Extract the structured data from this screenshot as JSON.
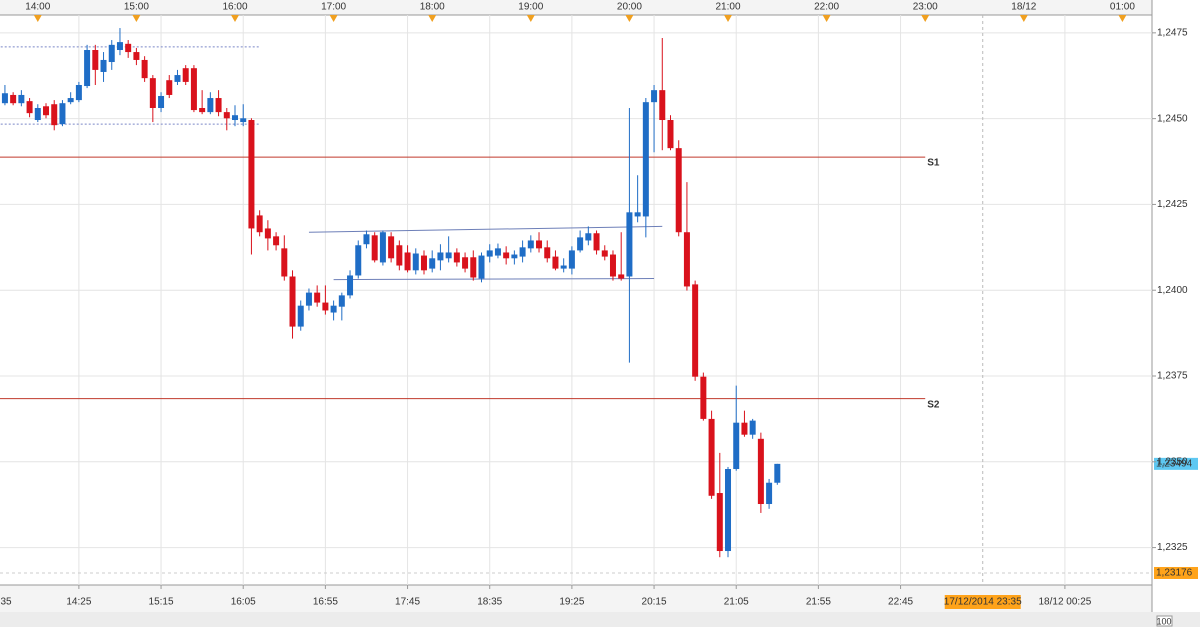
{
  "chart_data": {
    "type": "candlestick",
    "x": [
      "13:40",
      "13:45",
      "13:50",
      "13:55",
      "14:00",
      "14:05",
      "14:10",
      "14:15",
      "14:20",
      "14:25",
      "14:30",
      "14:35",
      "14:40",
      "14:45",
      "14:50",
      "14:55",
      "15:00",
      "15:05",
      "15:10",
      "15:15",
      "15:20",
      "15:25",
      "15:30",
      "15:35",
      "15:40",
      "15:45",
      "15:50",
      "15:55",
      "16:00",
      "16:05",
      "16:10",
      "16:15",
      "16:20",
      "16:25",
      "16:30",
      "16:35",
      "16:40",
      "16:45",
      "16:50",
      "16:55",
      "17:00",
      "17:05",
      "17:10",
      "17:15",
      "17:20",
      "17:25",
      "17:30",
      "17:35",
      "17:40",
      "17:45",
      "17:50",
      "17:55",
      "18:00",
      "18:05",
      "18:10",
      "18:15",
      "18:20",
      "18:25",
      "18:30",
      "18:35",
      "18:40",
      "18:45",
      "18:50",
      "18:55",
      "19:00",
      "19:05",
      "19:10",
      "19:15",
      "19:20",
      "19:25",
      "19:30",
      "19:35",
      "19:40",
      "19:45",
      "19:50",
      "19:55",
      "20:00",
      "20:05",
      "20:10",
      "20:15",
      "20:20",
      "20:25",
      "20:30",
      "20:35",
      "20:40",
      "20:45",
      "20:50",
      "20:55",
      "21:00",
      "21:05",
      "21:10",
      "21:15",
      "21:20",
      "21:25",
      "21:30"
    ],
    "open": [
      1.24545,
      1.24569,
      1.24545,
      1.24551,
      1.24496,
      1.24536,
      1.24542,
      1.24484,
      1.24548,
      1.24554,
      1.24595,
      1.247,
      1.24636,
      1.24665,
      1.247,
      1.24718,
      1.24694,
      1.24671,
      1.24618,
      1.24531,
      1.24612,
      1.24607,
      1.24647,
      1.24647,
      1.24531,
      1.24519,
      1.2456,
      1.24519,
      1.24496,
      1.2449,
      1.24496,
      1.24218,
      1.2418,
      1.24157,
      1.24122,
      1.2404,
      1.23894,
      1.23955,
      1.23993,
      1.23964,
      1.23935,
      1.23952,
      1.23985,
      1.24043,
      1.24134,
      1.2416,
      1.24081,
      1.24157,
      1.24131,
      1.2411,
      1.24058,
      1.24101,
      1.24063,
      1.24087,
      1.24093,
      1.2411,
      1.24096,
      1.24096,
      1.24034,
      1.24098,
      1.24101,
      1.2411,
      1.24093,
      1.24098,
      1.24122,
      1.24145,
      1.24125,
      1.24098,
      1.24063,
      1.24063,
      1.24116,
      1.24145,
      1.24166,
      1.24116,
      1.24104,
      1.24046,
      1.2404,
      1.24215,
      1.24215,
      1.24548,
      1.24583,
      1.24496,
      1.24414,
      1.24169,
      1.24017,
      1.23748,
      1.23625,
      1.23409,
      1.2324,
      1.23479,
      1.23614,
      1.23579,
      1.23567,
      1.23377,
      1.23439
    ],
    "high": [
      1.24598,
      1.24577,
      1.24583,
      1.2456,
      1.24542,
      1.24545,
      1.24554,
      1.24554,
      1.24577,
      1.24607,
      1.24715,
      1.24715,
      1.24694,
      1.24729,
      1.24764,
      1.24729,
      1.24706,
      1.24682,
      1.24627,
      1.24577,
      1.24627,
      1.24642,
      1.24656,
      1.24656,
      1.24583,
      1.24577,
      1.24583,
      1.24531,
      1.24539,
      1.24542,
      1.24501,
      1.24233,
      1.24204,
      1.24169,
      1.2416,
      1.24058,
      1.2397,
      1.24005,
      1.24014,
      1.24014,
      1.2397,
      1.23993,
      1.24058,
      1.24145,
      1.24174,
      1.24169,
      1.24174,
      1.24169,
      1.24145,
      1.24131,
      1.24122,
      1.24116,
      1.24116,
      1.24134,
      1.24157,
      1.24122,
      1.2411,
      1.24116,
      1.2411,
      1.24134,
      1.24136,
      1.24128,
      1.24116,
      1.24145,
      1.2416,
      1.24169,
      1.24145,
      1.24116,
      1.24093,
      1.24128,
      1.24174,
      1.24186,
      1.24174,
      1.24131,
      1.24116,
      1.24169,
      1.24531,
      1.24335,
      1.2456,
      1.24598,
      1.24735,
      1.2451,
      1.24437,
      1.24315,
      1.24028,
      1.2376,
      1.23649,
      1.23526,
      1.23485,
      1.23722,
      1.23649,
      1.23625,
      1.23585,
      1.2345,
      1.23494
    ],
    "low": [
      1.24539,
      1.24539,
      1.24536,
      1.24504,
      1.2449,
      1.24501,
      1.24466,
      1.24478,
      1.24542,
      1.24548,
      1.24589,
      1.24598,
      1.24607,
      1.24642,
      1.24685,
      1.24677,
      1.24656,
      1.24607,
      1.2449,
      1.24519,
      1.2456,
      1.24598,
      1.24598,
      1.24519,
      1.24513,
      1.24513,
      1.24507,
      1.24466,
      1.24478,
      1.24478,
      1.24104,
      1.24157,
      1.24116,
      1.24116,
      1.24028,
      1.23859,
      1.23882,
      1.23941,
      1.23952,
      1.23929,
      1.23912,
      1.23912,
      1.23976,
      1.24034,
      1.24122,
      1.24081,
      1.24072,
      1.24081,
      1.24058,
      1.24052,
      1.24046,
      1.24046,
      1.24052,
      1.24058,
      1.24081,
      1.24069,
      1.24052,
      1.24028,
      1.24023,
      1.24081,
      1.24093,
      1.24075,
      1.24075,
      1.24081,
      1.2411,
      1.2411,
      1.24081,
      1.24058,
      1.24052,
      1.24046,
      1.2411,
      1.24131,
      1.24104,
      1.24087,
      1.24028,
      1.24028,
      1.23789,
      1.24198,
      1.24154,
      1.24402,
      1.24408,
      1.24408,
      1.24157,
      1.23999,
      1.23736,
      1.2362,
      1.23392,
      1.23222,
      1.23222,
      1.23474,
      1.23573,
      1.23567,
      1.23351,
      1.23363,
      1.23433
    ],
    "close": [
      1.24574,
      1.24545,
      1.24569,
      1.24516,
      1.24531,
      1.2451,
      1.24481,
      1.24545,
      1.2456,
      1.24598,
      1.247,
      1.24642,
      1.24671,
      1.24715,
      1.24723,
      1.24694,
      1.24671,
      1.24618,
      1.24531,
      1.24566,
      1.24569,
      1.24627,
      1.24607,
      1.24525,
      1.24519,
      1.2456,
      1.24519,
      1.24501,
      1.2451,
      1.24501,
      1.2418,
      1.24169,
      1.24151,
      1.24131,
      1.2404,
      1.23894,
      1.23955,
      1.23993,
      1.23964,
      1.23941,
      1.23955,
      1.23985,
      1.24043,
      1.24131,
      1.24163,
      1.24087,
      1.24169,
      1.24093,
      1.24072,
      1.24058,
      1.24107,
      1.24058,
      1.24093,
      1.2411,
      1.2411,
      1.24081,
      1.24063,
      1.24037,
      1.24101,
      1.24116,
      1.24122,
      1.24093,
      1.24104,
      1.24125,
      1.24145,
      1.24122,
      1.24093,
      1.24063,
      1.24072,
      1.24116,
      1.24154,
      1.24166,
      1.24116,
      1.24098,
      1.2404,
      1.24034,
      1.24227,
      1.24227,
      1.24548,
      1.24583,
      1.24496,
      1.24414,
      1.24169,
      1.24011,
      1.23748,
      1.23625,
      1.23401,
      1.2324,
      1.23479,
      1.23614,
      1.23579,
      1.2362,
      1.23377,
      1.23439,
      1.23494
    ],
    "up_color": "#1f6dc6",
    "down_color": "#d9121c",
    "xlim": [
      "13:37",
      "25:18"
    ],
    "ylim": [
      1.23141,
      1.24802
    ],
    "yticks": [
      {
        "value": 1.2325,
        "label": "1,2325"
      },
      {
        "value": 1.235,
        "label": "1,2350"
      },
      {
        "value": 1.2375,
        "label": "1,2375"
      },
      {
        "value": 1.24,
        "label": "1,2400"
      },
      {
        "value": 1.2425,
        "label": "1,2425"
      },
      {
        "value": 1.245,
        "label": "1,2450"
      },
      {
        "value": 1.2475,
        "label": "1,2475"
      }
    ],
    "top_ticks": [
      "14:00",
      "15:00",
      "16:00",
      "17:00",
      "18:00",
      "19:00",
      "20:00",
      "21:00",
      "22:00",
      "23:00",
      {
        "value": "24:00",
        "label": "18/12"
      },
      {
        "value": "25:00",
        "label": "01:00"
      }
    ],
    "bottom_ticks": [
      {
        "value": "13:35",
        "label": "35"
      },
      "14:25",
      "15:15",
      "16:05",
      "16:55",
      "17:45",
      "18:35",
      "19:25",
      "20:15",
      "21:05",
      "21:55",
      "22:45",
      {
        "value": "24:25",
        "label": "18/12 00:25"
      }
    ],
    "grid": true,
    "levels": [
      {
        "label": "S1",
        "value": 1.24388,
        "x_end": "23:00",
        "color": "#c0392b"
      },
      {
        "label": "S2",
        "value": 1.23684,
        "x_end": "23:00",
        "color": "#c0392b"
      }
    ],
    "trend_lines": [
      {
        "x": [
          "16:45",
          "20:20"
        ],
        "y": [
          1.24169,
          1.24186
        ],
        "color": "#6d7fb8",
        "dashed": false
      },
      {
        "x": [
          "17:00",
          "20:15"
        ],
        "y": [
          1.24031,
          1.24034
        ],
        "color": "#6d7fb8",
        "dashed": false
      },
      {
        "x": [
          "13:35",
          "16:15"
        ],
        "y": [
          1.24709,
          1.24709
        ],
        "color": "#7a86c8",
        "dashed": true
      },
      {
        "x": [
          "13:35",
          "16:15"
        ],
        "y": [
          1.24484,
          1.24484
        ],
        "color": "#7a86c8",
        "dashed": true
      }
    ],
    "price_markers": [
      {
        "value": 1.23494,
        "label": "1,23494",
        "color": "#5ec8f2",
        "dashed": false
      },
      {
        "value": 1.23176,
        "label": "1,23176",
        "color": "#ffa31a",
        "dashed": true
      }
    ],
    "cursor": {
      "x": "23:35",
      "label": "17/12/2014 23:35",
      "color": "#ffa31a"
    },
    "zoom": "100"
  }
}
